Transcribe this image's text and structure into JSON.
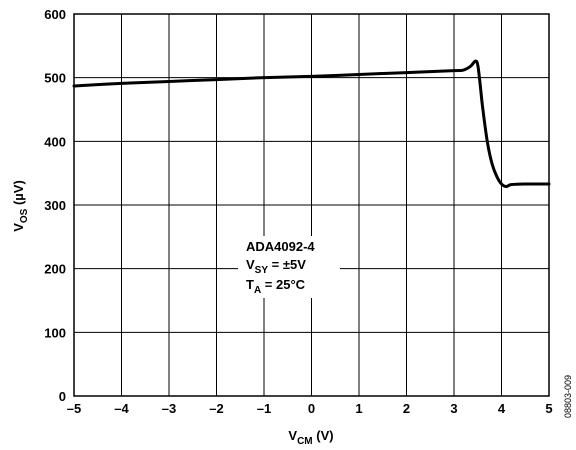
{
  "chart_data": {
    "type": "line",
    "xlabel": {
      "main": "V",
      "sub": "CM",
      "unit": " (V)"
    },
    "ylabel": {
      "main": "V",
      "sub": "OS",
      "unit": " (µV)"
    },
    "xlim": [
      -5,
      5
    ],
    "ylim": [
      0,
      600
    ],
    "xticks": [
      -5,
      -4,
      -3,
      -2,
      -1,
      0,
      1,
      2,
      3,
      4,
      5
    ],
    "xtick_labels": [
      "–5",
      "–4",
      "–3",
      "–2",
      "–1",
      "0",
      "1",
      "2",
      "3",
      "4",
      "5"
    ],
    "yticks": [
      0,
      100,
      200,
      300,
      400,
      500,
      600
    ],
    "ytick_labels": [
      "0",
      "100",
      "200",
      "300",
      "400",
      "500",
      "600"
    ],
    "grid": true,
    "series": [
      {
        "color": "#000000",
        "x": [
          -5,
          -4,
          -3,
          -2,
          -1,
          0,
          1,
          2,
          3,
          3.2,
          3.35,
          3.45,
          3.5,
          3.55,
          3.6,
          3.7,
          3.8,
          3.9,
          4.0,
          4.1,
          4.2,
          4.5,
          5
        ],
        "values": [
          487,
          491,
          494,
          497,
          500,
          502,
          505,
          508,
          511,
          512,
          518,
          526,
          520,
          490,
          455,
          400,
          365,
          345,
          333,
          329,
          332,
          333,
          333
        ]
      }
    ],
    "annotation": {
      "line1": "ADA4092-4",
      "line2": {
        "main": "V",
        "sub": "SY",
        "rest": " = ±5V"
      },
      "line3": {
        "main": "T",
        "sub": "A",
        "rest": " = 25°C"
      }
    },
    "figure_id": "08803-009"
  }
}
